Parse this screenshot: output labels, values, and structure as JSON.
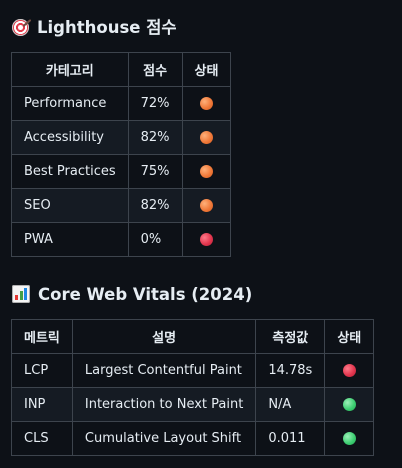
{
  "lighthouse": {
    "icon": "target-icon",
    "title": "Lighthouse 점수",
    "headers": [
      "카테고리",
      "점수",
      "상태"
    ],
    "rows": [
      {
        "category": "Performance",
        "score": "72%",
        "status": "orange"
      },
      {
        "category": "Accessibility",
        "score": "82%",
        "status": "orange"
      },
      {
        "category": "Best Practices",
        "score": "75%",
        "status": "orange"
      },
      {
        "category": "SEO",
        "score": "82%",
        "status": "orange"
      },
      {
        "category": "PWA",
        "score": "0%",
        "status": "red"
      }
    ]
  },
  "vitals": {
    "icon": "bar-chart-icon",
    "title": "Core Web Vitals (2024)",
    "headers": [
      "메트릭",
      "설명",
      "측정값",
      "상태"
    ],
    "rows": [
      {
        "metric": "LCP",
        "description": "Largest Contentful Paint",
        "value": "14.78s",
        "status": "red"
      },
      {
        "metric": "INP",
        "description": "Interaction to Next Paint",
        "value": "N/A",
        "status": "green"
      },
      {
        "metric": "CLS",
        "description": "Cumulative Layout Shift",
        "value": "0.011",
        "status": "green"
      }
    ]
  },
  "colors": {
    "background": "#0d1117",
    "border": "#3d444d",
    "orange": "#f07a3a",
    "red": "#e2374f",
    "green": "#3fcf73"
  }
}
